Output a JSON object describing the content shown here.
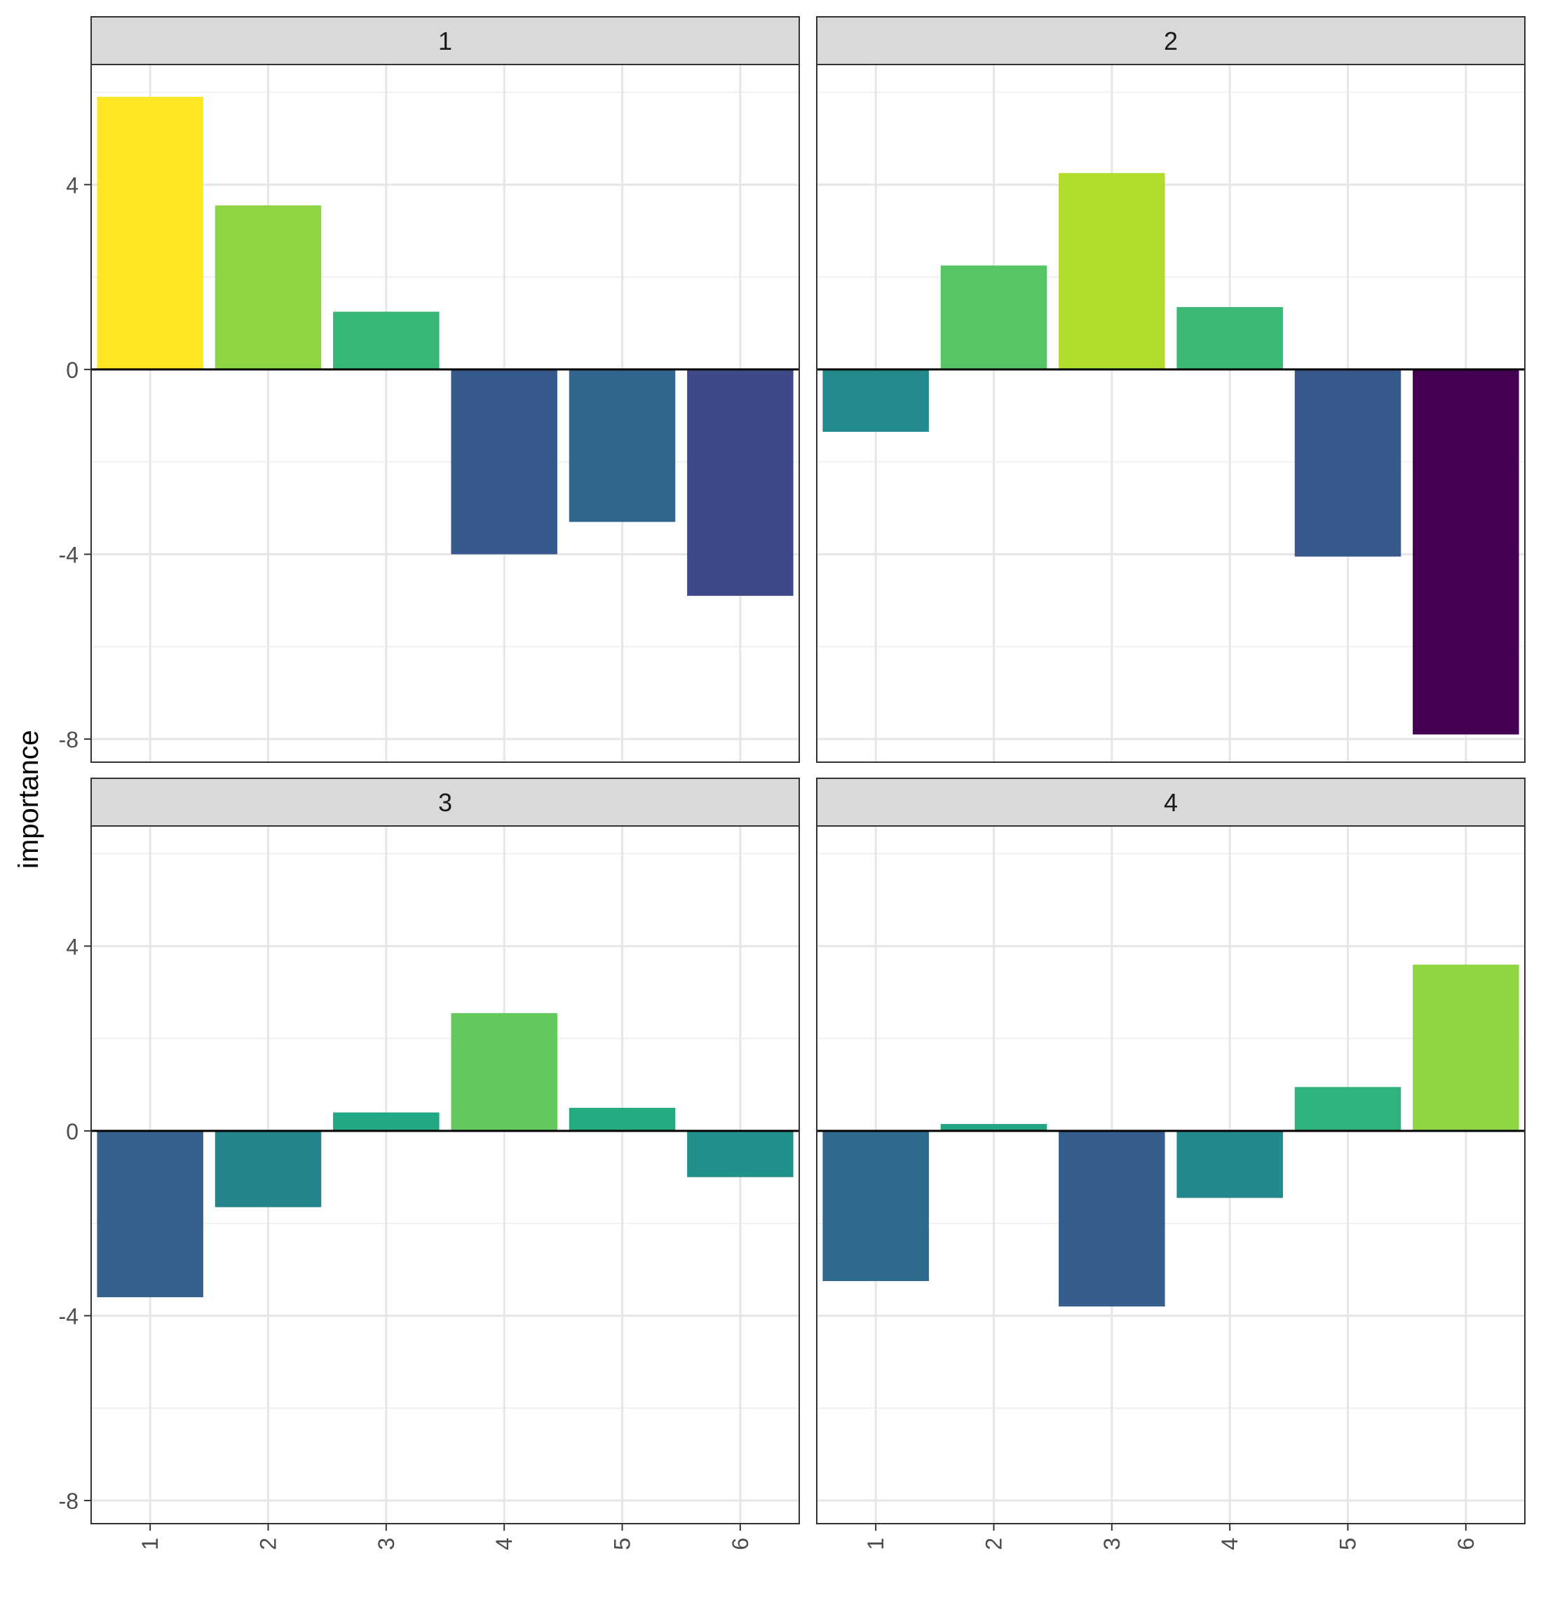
{
  "chart_data": {
    "type": "bar",
    "layout": "facet-grid-2x2",
    "ylabel": "importance",
    "xlabel": "",
    "ylim": [
      -8.5,
      6.6
    ],
    "yticks": [
      4,
      0,
      -4,
      -8
    ],
    "ytick_labels": [
      "4",
      "0",
      "-4",
      "-8"
    ],
    "categories": [
      "1",
      "2",
      "3",
      "4",
      "5",
      "6"
    ],
    "colorscale": "viridis",
    "color_range": [
      -7.9,
      5.9
    ],
    "grid": true,
    "legend": "none",
    "panels": [
      {
        "title": "1",
        "values": [
          5.9,
          3.55,
          1.25,
          -4.0,
          -3.3,
          -4.9
        ]
      },
      {
        "title": "2",
        "values": [
          -1.35,
          2.25,
          4.25,
          1.35,
          -4.05,
          -7.9
        ]
      },
      {
        "title": "3",
        "values": [
          -3.6,
          -1.65,
          0.4,
          2.55,
          0.5,
          -1.0
        ]
      },
      {
        "title": "4",
        "values": [
          -3.25,
          0.15,
          -3.8,
          -1.45,
          0.95,
          3.6
        ]
      }
    ]
  }
}
